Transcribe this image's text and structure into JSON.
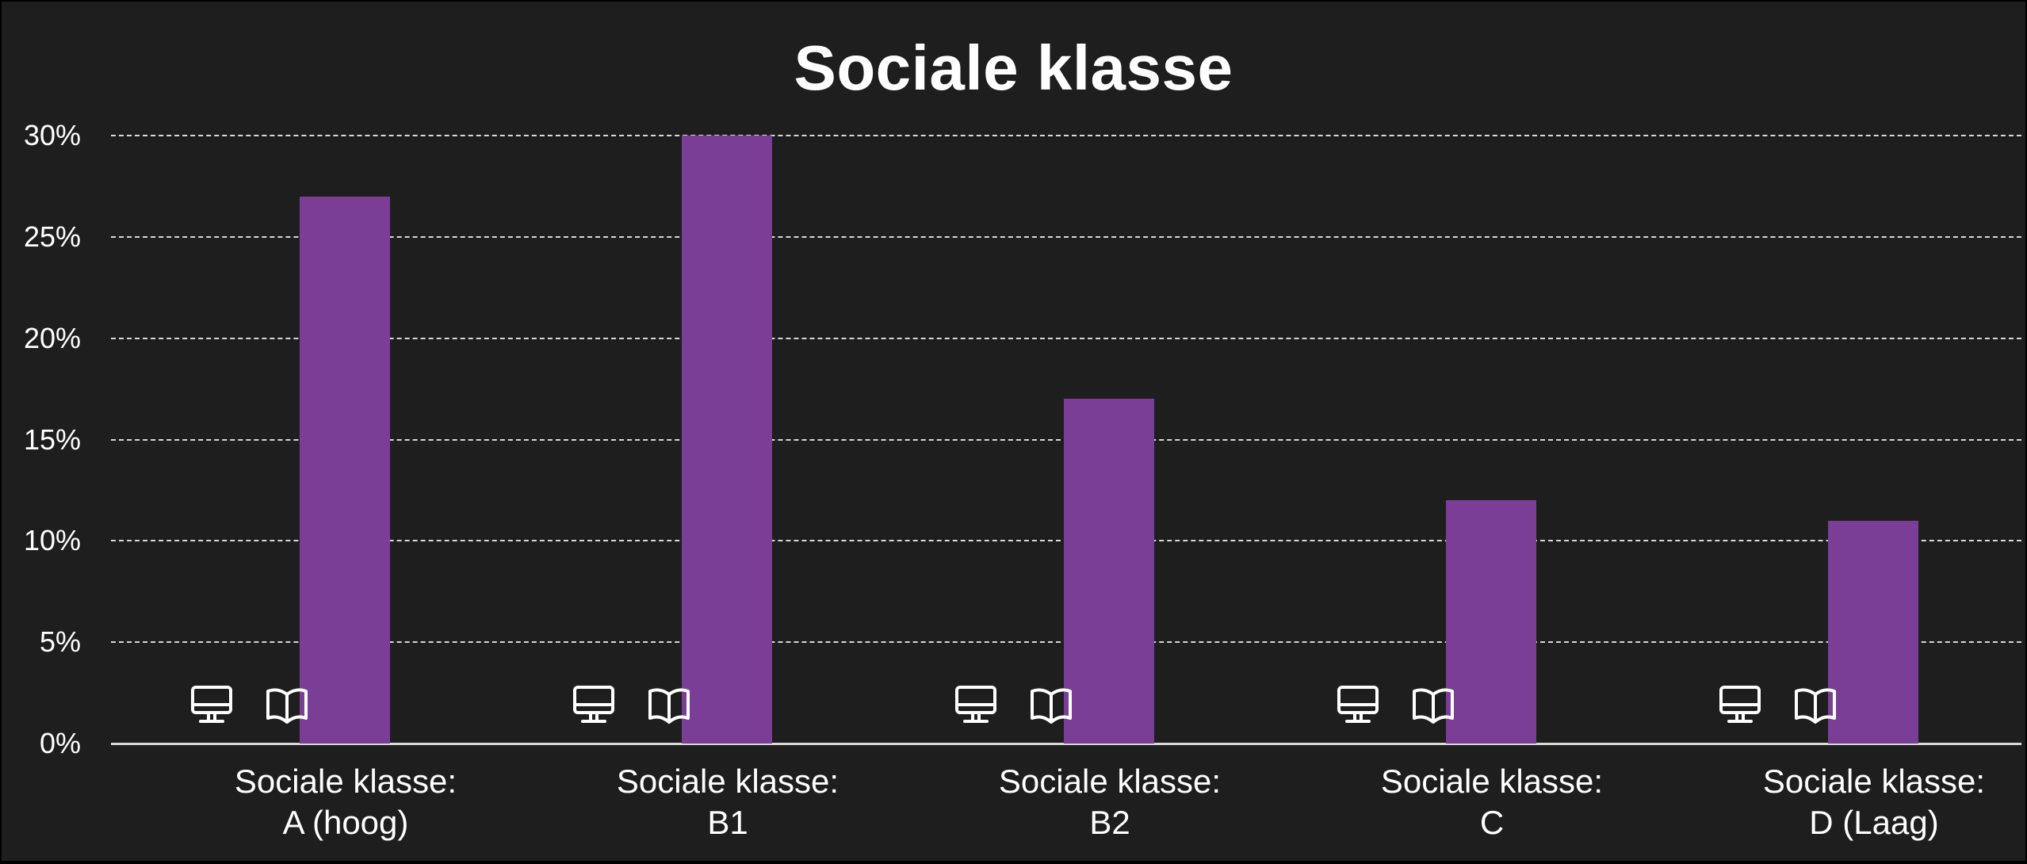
{
  "chart_data": {
    "type": "bar",
    "title": "Sociale klasse",
    "xlabel": "",
    "ylabel": "",
    "ylim": [
      0,
      30
    ],
    "yticks": [
      "0%",
      "5%",
      "10%",
      "15%",
      "20%",
      "25%",
      "30%"
    ],
    "grid": true,
    "legend": "none (series indicated by icons at bar base)",
    "categories": [
      "Sociale klasse: A (hoog)",
      "Sociale klasse: B1",
      "Sociale klasse: B2",
      "Sociale klasse: C",
      "Sociale klasse: D (Laag)"
    ],
    "series": [
      {
        "name": "Online (monitor icon)",
        "icon": "monitor-icon",
        "values": [
          0,
          0,
          0,
          0,
          0
        ]
      },
      {
        "name": "Print (book icon)",
        "icon": "book-icon",
        "color": "#7a3e96",
        "values": [
          27,
          30,
          17,
          12,
          11
        ]
      }
    ]
  },
  "title": "Sociale klasse",
  "yaxis": {
    "ticks": [
      "0%",
      "5%",
      "10%",
      "15%",
      "20%",
      "25%",
      "30%"
    ]
  },
  "groups": [
    {
      "line1": "Sociale klasse:",
      "line2": "A (hoog)",
      "value": 27
    },
    {
      "line1": "Sociale klasse:",
      "line2": "B1",
      "value": 30
    },
    {
      "line1": "Sociale klasse:",
      "line2": "B2",
      "value": 17
    },
    {
      "line1": "Sociale klasse:",
      "line2": "C",
      "value": 12
    },
    {
      "line1": "Sociale klasse:",
      "line2": "D (Laag)",
      "value": 11
    }
  ],
  "colors": {
    "background": "#1e1e1e",
    "bar": "#7a3e96",
    "grid": "#d8d8d8",
    "text": "#ffffff"
  }
}
